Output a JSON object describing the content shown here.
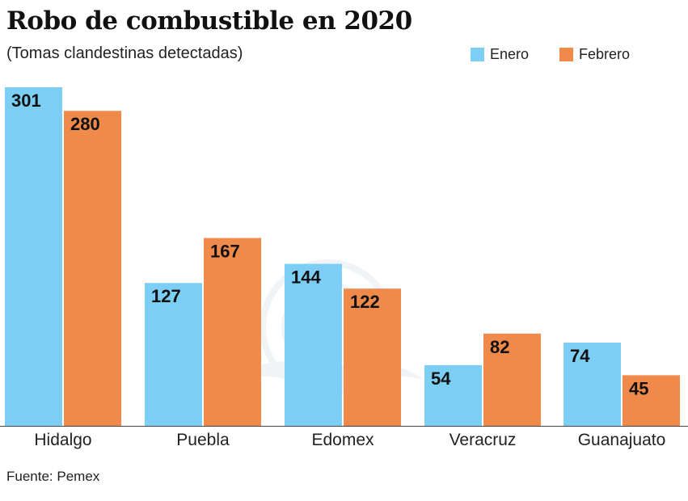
{
  "title": "Robo de combustible en 2020",
  "subtitle": "(Tomas clandestinas detectadas)",
  "source": "Fuente: Pemex",
  "colors": {
    "enero": "#7dcef4",
    "febrero": "#f08a4b"
  },
  "legend": {
    "enero": "Enero",
    "febrero": "Febrero"
  },
  "chart_data": {
    "type": "bar",
    "title": "Robo de combustible en 2020",
    "subtitle": "(Tomas clandestinas detectadas)",
    "categories": [
      "Hidalgo",
      "Puebla",
      "Edomex",
      "Veracruz",
      "Guanajuato"
    ],
    "series": [
      {
        "name": "Enero",
        "values": [
          301,
          127,
          144,
          54,
          74
        ]
      },
      {
        "name": "Febrero",
        "values": [
          280,
          167,
          122,
          82,
          45
        ]
      }
    ],
    "xlabel": "",
    "ylabel": "",
    "ylim": [
      0,
      301
    ],
    "grid": false,
    "legend_position": "top-right",
    "data_labels": true
  }
}
